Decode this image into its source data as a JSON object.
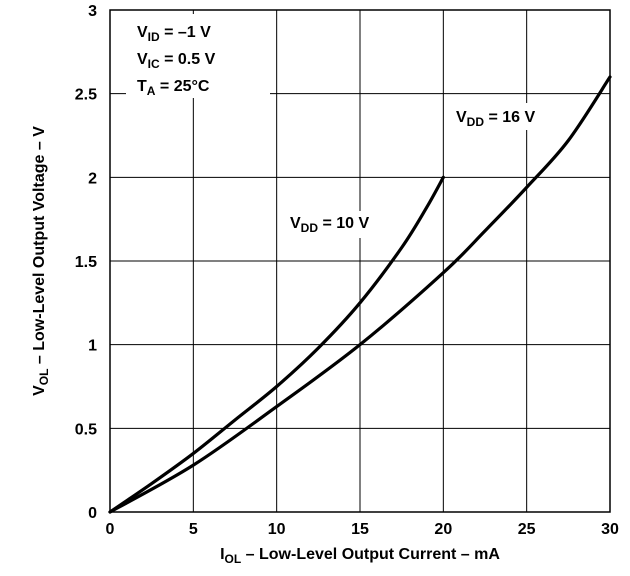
{
  "chart_data": {
    "type": "line",
    "xlabel": "I",
    "xlabel_sub": "OL",
    "xlabel_rest": " – Low-Level Output Current – mA",
    "ylabel": "V",
    "ylabel_sub": "OL",
    "ylabel_rest": " – Low-Level Output Voltage – V",
    "xlim": [
      0,
      30
    ],
    "ylim": [
      0,
      3
    ],
    "xticks": [
      0,
      5,
      10,
      15,
      20,
      25,
      30
    ],
    "xtick_labels": [
      "0",
      "5",
      "10",
      "15",
      "20",
      "25",
      "30"
    ],
    "yticks": [
      0,
      0.5,
      1,
      1.5,
      2,
      2.5,
      3
    ],
    "ytick_labels": [
      "0",
      "0.5",
      "1",
      "1.5",
      "2",
      "2.5",
      "3"
    ],
    "grid": true,
    "conditions": [
      {
        "main": "V",
        "sub": "ID",
        "rest": " = –1 V"
      },
      {
        "main": "V",
        "sub": "IC",
        "rest": " = 0.5 V"
      },
      {
        "main": "T",
        "sub": "A",
        "rest": " = 25°C"
      }
    ],
    "series": [
      {
        "label_main": "V",
        "label_sub": "DD",
        "label_rest": " = 10 V",
        "x": [
          0,
          2.5,
          5,
          7.5,
          10,
          12.5,
          15,
          17.5,
          19,
          20
        ],
        "y": [
          0,
          0.17,
          0.35,
          0.55,
          0.75,
          0.98,
          1.25,
          1.58,
          1.82,
          2.0
        ]
      },
      {
        "label_main": "V",
        "label_sub": "DD",
        "label_rest": " = 16 V",
        "x": [
          0,
          5,
          10,
          15,
          20,
          22.5,
          25,
          27.5,
          30
        ],
        "y": [
          0,
          0.28,
          0.63,
          1.0,
          1.43,
          1.68,
          1.94,
          2.22,
          2.6
        ]
      }
    ]
  }
}
